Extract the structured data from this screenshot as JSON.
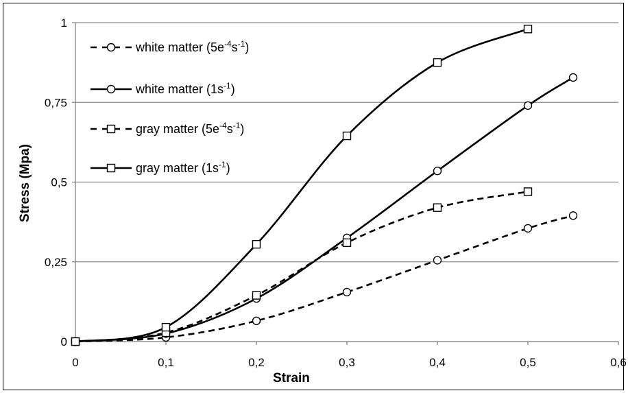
{
  "chart_data": {
    "type": "line",
    "xlabel": "Strain",
    "ylabel": "Stress (Mpa)",
    "xlim": [
      0,
      0.6
    ],
    "ylim": [
      0,
      1
    ],
    "x_ticks": [
      0,
      0.1,
      0.2,
      0.3,
      0.4,
      0.5,
      0.6
    ],
    "x_tick_labels": [
      "0",
      "0,1",
      "0,2",
      "0,3",
      "0,4",
      "0,5",
      "0,6"
    ],
    "y_ticks": [
      0,
      0.25,
      0.5,
      0.75,
      1
    ],
    "y_tick_labels": [
      "0",
      "0,25",
      "0,5",
      "0,75",
      "1"
    ],
    "grid": "horizontal",
    "legend_position": "top-left",
    "series": [
      {
        "name": "white matter (5e-4s-1)",
        "legend": {
          "base": "white matter (5e",
          "sup1": "-4",
          "mid": "s",
          "sup2": "-1",
          "end": ")"
        },
        "line": "dashed",
        "marker": "circle",
        "x": [
          0,
          0.1,
          0.2,
          0.3,
          0.4,
          0.5,
          0.55
        ],
        "y": [
          0,
          0.013,
          0.065,
          0.155,
          0.255,
          0.355,
          0.395
        ]
      },
      {
        "name": "white matter (1s-1)",
        "legend": {
          "base": "white matter (1s",
          "sup1": "-1",
          "mid": ")",
          "sup2": "",
          "end": ""
        },
        "line": "solid",
        "marker": "circle",
        "x": [
          0,
          0.1,
          0.2,
          0.3,
          0.4,
          0.5,
          0.55
        ],
        "y": [
          0,
          0.025,
          0.135,
          0.325,
          0.535,
          0.74,
          0.828
        ]
      },
      {
        "name": "gray matter (5e-4s-1)",
        "legend": {
          "base": "gray matter  (5e",
          "sup1": "-4",
          "mid": "s",
          "sup2": "-1",
          "end": ")"
        },
        "line": "dashed",
        "marker": "square",
        "x": [
          0,
          0.1,
          0.2,
          0.3,
          0.4,
          0.5
        ],
        "y": [
          0,
          0.028,
          0.145,
          0.31,
          0.42,
          0.47
        ]
      },
      {
        "name": "gray matter (1s-1)",
        "legend": {
          "base": "gray matter  (1s",
          "sup1": "-1",
          "mid": ")",
          "sup2": "",
          "end": ""
        },
        "line": "solid",
        "marker": "square",
        "x": [
          0,
          0.1,
          0.2,
          0.3,
          0.4,
          0.5
        ],
        "y": [
          0,
          0.045,
          0.305,
          0.645,
          0.875,
          0.98
        ]
      }
    ]
  }
}
